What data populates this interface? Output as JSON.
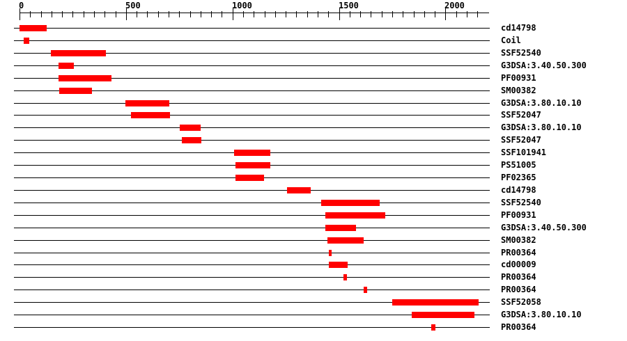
{
  "chart_data": {
    "type": "bar",
    "subtype": "protein-domain-tracks",
    "title": "",
    "xlabel": "",
    "ylabel": "",
    "legend": "none",
    "grid": false,
    "axis": {
      "position": "top",
      "min": 0,
      "max": 2204,
      "major_ticks": [
        0,
        500,
        1000,
        1500,
        2000
      ],
      "major_tick_labels": [
        "0",
        "500",
        "1000",
        "1500",
        "2000"
      ],
      "minor_tick_step": 50,
      "minor_tick_max": 2150
    },
    "colors": {
      "bar": "#ff0000",
      "line": "#000000",
      "text": "#000000",
      "background": "#ffffff"
    },
    "rows": [
      {
        "label": "cd14798",
        "start": 0,
        "end": 127
      },
      {
        "label": "Coil",
        "start": 20,
        "end": 47
      },
      {
        "label": "SSF52540",
        "start": 148,
        "end": 406
      },
      {
        "label": "G3DSA:3.40.50.300",
        "start": 184,
        "end": 257
      },
      {
        "label": "PF00931",
        "start": 184,
        "end": 432
      },
      {
        "label": "SM00382",
        "start": 186,
        "end": 340
      },
      {
        "label": "G3DSA:3.80.10.10",
        "start": 497,
        "end": 702
      },
      {
        "label": "SSF52047",
        "start": 522,
        "end": 704
      },
      {
        "label": "G3DSA:3.80.10.10",
        "start": 753,
        "end": 851
      },
      {
        "label": "SSF52047",
        "start": 761,
        "end": 851
      },
      {
        "label": "SSF101941",
        "start": 1008,
        "end": 1178
      },
      {
        "label": "PS51005",
        "start": 1015,
        "end": 1178
      },
      {
        "label": "PF02365",
        "start": 1015,
        "end": 1149
      },
      {
        "label": "cd14798",
        "start": 1257,
        "end": 1367
      },
      {
        "label": "SSF52540",
        "start": 1416,
        "end": 1691
      },
      {
        "label": "PF00931",
        "start": 1435,
        "end": 1716
      },
      {
        "label": "G3DSA:3.40.50.300",
        "start": 1435,
        "end": 1579
      },
      {
        "label": "SM00382",
        "start": 1446,
        "end": 1615
      },
      {
        "label": "PR00364",
        "start": 1452,
        "end": 1465
      },
      {
        "label": "cd00009",
        "start": 1452,
        "end": 1541
      },
      {
        "label": "PR00364",
        "start": 1522,
        "end": 1538
      },
      {
        "label": "PR00364",
        "start": 1617,
        "end": 1633
      },
      {
        "label": "SSF52058",
        "start": 1751,
        "end": 2158
      },
      {
        "label": "G3DSA:3.80.10.10",
        "start": 1842,
        "end": 2135
      },
      {
        "label": "PR00364",
        "start": 1934,
        "end": 1953
      }
    ]
  }
}
